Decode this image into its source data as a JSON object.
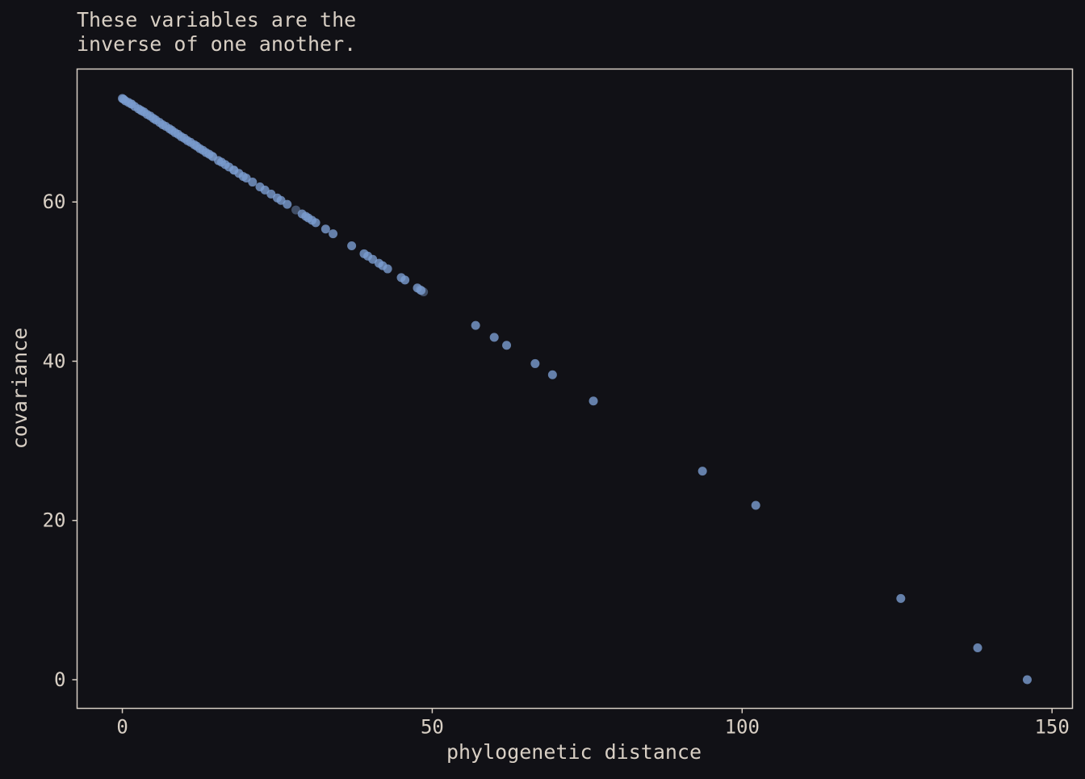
{
  "colors": {
    "background": "#111116",
    "panel_border": "#d8cfc4",
    "text": "#d8cfc4",
    "point": "#7b9ccf",
    "point_dim": "#4a5a75"
  },
  "chart_data": {
    "type": "scatter",
    "title_lines": [
      "These variables are the",
      "inverse of one another."
    ],
    "xlabel": "phylogenetic distance",
    "ylabel": "covariance",
    "xlim": [
      -7.3,
      153.3
    ],
    "ylim": [
      -3.6,
      76.7
    ],
    "x_ticks": [
      0,
      50,
      100,
      150
    ],
    "y_ticks": [
      0,
      20,
      40,
      60
    ],
    "grid": false,
    "legend": "none",
    "series": [
      {
        "points": [
          [
            0,
            73.0
          ],
          [
            0.2,
            72.9
          ],
          [
            0.5,
            72.7
          ],
          [
            1.0,
            72.5
          ],
          [
            1.5,
            72.3
          ],
          [
            2.0,
            72.0
          ],
          [
            2.6,
            71.7
          ],
          [
            3.0,
            71.5
          ],
          [
            3.5,
            71.3
          ],
          [
            4.0,
            71.0
          ],
          [
            4.5,
            70.8
          ],
          [
            5.0,
            70.5
          ],
          [
            5.4,
            70.3
          ],
          [
            6.0,
            70.0
          ],
          [
            6.5,
            69.7
          ],
          [
            7.0,
            69.5
          ],
          [
            7.6,
            69.2
          ],
          [
            8.0,
            69.0
          ],
          [
            8.5,
            68.7
          ],
          [
            9.0,
            68.5
          ],
          [
            9.5,
            68.2
          ],
          [
            10.0,
            68.0
          ],
          [
            10.5,
            67.7
          ],
          [
            11.0,
            67.5
          ],
          [
            11.6,
            67.2
          ],
          [
            12.0,
            67.0
          ],
          [
            12.5,
            66.7
          ],
          [
            13.0,
            66.5
          ],
          [
            13.5,
            66.2
          ],
          [
            14.0,
            66.0
          ],
          [
            14.6,
            65.7
          ],
          [
            15.5,
            65.2
          ],
          [
            16.0,
            65.0
          ],
          [
            16.6,
            64.7
          ],
          [
            17.2,
            64.4
          ],
          [
            18.0,
            64.0
          ],
          [
            18.8,
            63.6
          ],
          [
            19.5,
            63.2
          ],
          [
            20.0,
            63.0
          ],
          [
            21.0,
            62.5
          ],
          [
            22.2,
            61.9
          ],
          [
            23.0,
            61.5
          ],
          [
            24.0,
            61.0
          ],
          [
            25.0,
            60.5
          ],
          [
            25.6,
            60.2
          ],
          [
            26.6,
            59.7
          ],
          [
            29.0,
            58.5
          ],
          [
            29.6,
            58.2
          ],
          [
            30.0,
            58.0
          ],
          [
            30.6,
            57.7
          ],
          [
            31.2,
            57.4
          ],
          [
            32.8,
            56.6
          ],
          [
            34.0,
            56.0
          ],
          [
            37.0,
            54.5
          ],
          [
            39.0,
            53.5
          ],
          [
            39.6,
            53.2
          ],
          [
            40.4,
            52.8
          ],
          [
            41.4,
            52.3
          ],
          [
            42.0,
            52.0
          ],
          [
            42.8,
            51.6
          ],
          [
            45.0,
            50.5
          ],
          [
            45.6,
            50.2
          ],
          [
            47.6,
            49.2
          ],
          [
            48.2,
            48.9
          ],
          [
            57.0,
            44.5
          ],
          [
            60.0,
            43.0
          ],
          [
            62.0,
            42.0
          ],
          [
            66.6,
            39.7
          ],
          [
            69.4,
            38.3
          ],
          [
            76.0,
            35.0
          ],
          [
            93.6,
            26.2
          ],
          [
            102.2,
            21.9
          ],
          [
            125.6,
            10.2
          ],
          [
            138.0,
            4.0
          ],
          [
            146.0,
            0.0
          ]
        ],
        "dim_points": [
          [
            1.4,
            72.3
          ],
          [
            3.2,
            71.4
          ],
          [
            14.4,
            65.8
          ],
          [
            18.0,
            64.0
          ],
          [
            28.0,
            59.0
          ],
          [
            48.0,
            49.0
          ],
          [
            48.6,
            48.7
          ]
        ]
      }
    ]
  }
}
